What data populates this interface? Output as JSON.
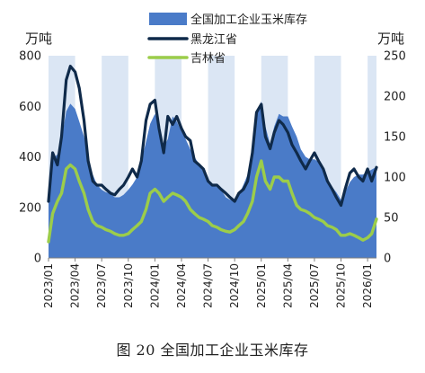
{
  "figure": {
    "caption": "图 20 全国加工企业玉米库存"
  },
  "chart_data": {
    "type": "area+line",
    "left_axis": {
      "unit": "万吨",
      "range": [
        0,
        800
      ],
      "ticks": [
        0,
        200,
        400,
        600,
        800
      ]
    },
    "right_axis": {
      "unit": "万吨",
      "range": [
        0,
        250
      ],
      "ticks": [
        0,
        50,
        100,
        150,
        200,
        250
      ]
    },
    "x_tick_labels": [
      "2023/01",
      "2023/04",
      "2023/07",
      "2023/10",
      "2024/01",
      "2024/04",
      "2024/07",
      "2024/10",
      "2025/01",
      "2025/04",
      "2025/07",
      "2025/10",
      "2026/01"
    ],
    "x_range": [
      "2023/01",
      "2026/02"
    ],
    "grid": "vertical stripes",
    "legend": {
      "position": "top-center"
    },
    "colors": {
      "area": "#4a7bc8",
      "heilongjiang": "#0f2a4a",
      "jilin": "#9ccd4a",
      "stripe": "#dbe6f4"
    },
    "series": [
      {
        "name": "全国加工企业玉米库存",
        "axis": "left",
        "style": "area",
        "points": [
          [
            "2023/01/01",
            250
          ],
          [
            "2023/01/15",
            390
          ],
          [
            "2023/02/01",
            410
          ],
          [
            "2023/02/15",
            470
          ],
          [
            "2023/03/01",
            580
          ],
          [
            "2023/03/15",
            610
          ],
          [
            "2023/04/01",
            590
          ],
          [
            "2023/04/15",
            540
          ],
          [
            "2023/05/01",
            480
          ],
          [
            "2023/05/15",
            400
          ],
          [
            "2023/06/01",
            330
          ],
          [
            "2023/06/15",
            290
          ],
          [
            "2023/07/01",
            270
          ],
          [
            "2023/07/15",
            260
          ],
          [
            "2023/08/01",
            255
          ],
          [
            "2023/08/15",
            240
          ],
          [
            "2023/09/01",
            240
          ],
          [
            "2023/09/15",
            250
          ],
          [
            "2023/10/01",
            270
          ],
          [
            "2023/10/15",
            290
          ],
          [
            "2023/11/01",
            320
          ],
          [
            "2023/11/15",
            380
          ],
          [
            "2023/12/01",
            460
          ],
          [
            "2023/12/15",
            530
          ],
          [
            "2024/01/01",
            570
          ],
          [
            "2024/01/15",
            530
          ],
          [
            "2024/02/01",
            440
          ],
          [
            "2024/02/15",
            470
          ],
          [
            "2024/03/01",
            560
          ],
          [
            "2024/03/15",
            540
          ],
          [
            "2024/04/01",
            500
          ],
          [
            "2024/04/15",
            470
          ],
          [
            "2024/05/01",
            430
          ],
          [
            "2024/05/15",
            400
          ],
          [
            "2024/06/01",
            370
          ],
          [
            "2024/06/15",
            340
          ],
          [
            "2024/07/01",
            300
          ],
          [
            "2024/07/15",
            290
          ],
          [
            "2024/08/01",
            280
          ],
          [
            "2024/08/15",
            270
          ],
          [
            "2024/09/01",
            240
          ],
          [
            "2024/09/15",
            230
          ],
          [
            "2024/10/01",
            230
          ],
          [
            "2024/10/15",
            250
          ],
          [
            "2024/11/01",
            290
          ],
          [
            "2024/11/15",
            330
          ],
          [
            "2024/12/01",
            420
          ],
          [
            "2024/12/15",
            560
          ],
          [
            "2025/01/01",
            620
          ],
          [
            "2025/01/15",
            520
          ],
          [
            "2025/02/01",
            450
          ],
          [
            "2025/02/15",
            520
          ],
          [
            "2025/03/01",
            570
          ],
          [
            "2025/03/15",
            560
          ],
          [
            "2025/04/01",
            560
          ],
          [
            "2025/04/15",
            520
          ],
          [
            "2025/05/01",
            480
          ],
          [
            "2025/05/15",
            430
          ],
          [
            "2025/06/01",
            400
          ],
          [
            "2025/06/15",
            390
          ],
          [
            "2025/07/01",
            390
          ],
          [
            "2025/07/15",
            380
          ],
          [
            "2025/08/01",
            350
          ],
          [
            "2025/08/15",
            310
          ],
          [
            "2025/09/01",
            280
          ],
          [
            "2025/09/15",
            260
          ],
          [
            "2025/10/01",
            230
          ],
          [
            "2025/10/15",
            260
          ],
          [
            "2025/11/01",
            300
          ],
          [
            "2025/11/15",
            320
          ],
          [
            "2025/12/01",
            330
          ],
          [
            "2025/12/15",
            330
          ],
          [
            "2026/01/01",
            340
          ],
          [
            "2026/01/15",
            350
          ],
          [
            "2026/02/01",
            360
          ]
        ]
      },
      {
        "name": "黑龙江省",
        "axis": "right",
        "style": "line",
        "points": [
          [
            "2023/01/01",
            70
          ],
          [
            "2023/01/15",
            130
          ],
          [
            "2023/02/01",
            115
          ],
          [
            "2023/02/15",
            150
          ],
          [
            "2023/03/01",
            220
          ],
          [
            "2023/03/15",
            237
          ],
          [
            "2023/04/01",
            230
          ],
          [
            "2023/04/15",
            210
          ],
          [
            "2023/05/01",
            170
          ],
          [
            "2023/05/15",
            120
          ],
          [
            "2023/06/01",
            95
          ],
          [
            "2023/06/15",
            90
          ],
          [
            "2023/07/01",
            90
          ],
          [
            "2023/07/15",
            85
          ],
          [
            "2023/08/01",
            80
          ],
          [
            "2023/08/15",
            78
          ],
          [
            "2023/09/01",
            85
          ],
          [
            "2023/09/15",
            90
          ],
          [
            "2023/10/01",
            100
          ],
          [
            "2023/10/15",
            110
          ],
          [
            "2023/11/01",
            100
          ],
          [
            "2023/11/15",
            120
          ],
          [
            "2023/12/01",
            170
          ],
          [
            "2023/12/15",
            190
          ],
          [
            "2024/01/01",
            195
          ],
          [
            "2024/01/15",
            160
          ],
          [
            "2024/02/01",
            130
          ],
          [
            "2024/02/15",
            175
          ],
          [
            "2024/03/01",
            165
          ],
          [
            "2024/03/15",
            175
          ],
          [
            "2024/04/01",
            160
          ],
          [
            "2024/04/15",
            150
          ],
          [
            "2024/05/01",
            145
          ],
          [
            "2024/05/15",
            120
          ],
          [
            "2024/06/01",
            115
          ],
          [
            "2024/06/15",
            110
          ],
          [
            "2024/07/01",
            95
          ],
          [
            "2024/07/15",
            90
          ],
          [
            "2024/08/01",
            90
          ],
          [
            "2024/08/15",
            85
          ],
          [
            "2024/09/01",
            80
          ],
          [
            "2024/09/15",
            75
          ],
          [
            "2024/10/01",
            70
          ],
          [
            "2024/10/15",
            80
          ],
          [
            "2024/11/01",
            85
          ],
          [
            "2024/11/15",
            95
          ],
          [
            "2024/12/01",
            130
          ],
          [
            "2024/12/15",
            180
          ],
          [
            "2025/01/01",
            190
          ],
          [
            "2025/01/15",
            150
          ],
          [
            "2025/02/01",
            135
          ],
          [
            "2025/02/15",
            155
          ],
          [
            "2025/03/01",
            170
          ],
          [
            "2025/03/15",
            165
          ],
          [
            "2025/04/01",
            155
          ],
          [
            "2025/04/15",
            140
          ],
          [
            "2025/05/01",
            130
          ],
          [
            "2025/05/15",
            120
          ],
          [
            "2025/06/01",
            110
          ],
          [
            "2025/06/15",
            120
          ],
          [
            "2025/07/01",
            130
          ],
          [
            "2025/07/15",
            120
          ],
          [
            "2025/08/01",
            110
          ],
          [
            "2025/08/15",
            95
          ],
          [
            "2025/09/01",
            85
          ],
          [
            "2025/09/15",
            75
          ],
          [
            "2025/10/01",
            65
          ],
          [
            "2025/10/15",
            85
          ],
          [
            "2025/11/01",
            105
          ],
          [
            "2025/11/15",
            110
          ],
          [
            "2025/12/01",
            100
          ],
          [
            "2025/12/15",
            95
          ],
          [
            "2026/01/01",
            110
          ],
          [
            "2026/01/15",
            95
          ],
          [
            "2026/02/01",
            112
          ]
        ]
      },
      {
        "name": "吉林省",
        "axis": "right",
        "style": "line",
        "points": [
          [
            "2023/01/01",
            20
          ],
          [
            "2023/01/15",
            55
          ],
          [
            "2023/02/01",
            70
          ],
          [
            "2023/02/15",
            80
          ],
          [
            "2023/03/01",
            110
          ],
          [
            "2023/03/15",
            115
          ],
          [
            "2023/04/01",
            110
          ],
          [
            "2023/04/15",
            95
          ],
          [
            "2023/05/01",
            80
          ],
          [
            "2023/05/15",
            60
          ],
          [
            "2023/06/01",
            45
          ],
          [
            "2023/06/15",
            40
          ],
          [
            "2023/07/01",
            38
          ],
          [
            "2023/07/15",
            35
          ],
          [
            "2023/08/01",
            33
          ],
          [
            "2023/08/15",
            30
          ],
          [
            "2023/09/01",
            28
          ],
          [
            "2023/09/15",
            28
          ],
          [
            "2023/10/01",
            30
          ],
          [
            "2023/10/15",
            35
          ],
          [
            "2023/11/01",
            40
          ],
          [
            "2023/11/15",
            45
          ],
          [
            "2023/12/01",
            60
          ],
          [
            "2023/12/15",
            80
          ],
          [
            "2024/01/01",
            85
          ],
          [
            "2024/01/15",
            80
          ],
          [
            "2024/02/01",
            70
          ],
          [
            "2024/02/15",
            75
          ],
          [
            "2024/03/01",
            80
          ],
          [
            "2024/03/15",
            78
          ],
          [
            "2024/04/01",
            75
          ],
          [
            "2024/04/15",
            70
          ],
          [
            "2024/05/01",
            60
          ],
          [
            "2024/05/15",
            55
          ],
          [
            "2024/06/01",
            50
          ],
          [
            "2024/06/15",
            48
          ],
          [
            "2024/07/01",
            45
          ],
          [
            "2024/07/15",
            40
          ],
          [
            "2024/08/01",
            38
          ],
          [
            "2024/08/15",
            35
          ],
          [
            "2024/09/01",
            33
          ],
          [
            "2024/09/15",
            32
          ],
          [
            "2024/10/01",
            35
          ],
          [
            "2024/10/15",
            40
          ],
          [
            "2024/11/01",
            45
          ],
          [
            "2024/11/15",
            55
          ],
          [
            "2024/12/01",
            70
          ],
          [
            "2024/12/15",
            100
          ],
          [
            "2025/01/01",
            120
          ],
          [
            "2025/01/15",
            95
          ],
          [
            "2025/02/01",
            85
          ],
          [
            "2025/02/15",
            100
          ],
          [
            "2025/03/01",
            100
          ],
          [
            "2025/03/15",
            95
          ],
          [
            "2025/04/01",
            95
          ],
          [
            "2025/04/15",
            80
          ],
          [
            "2025/05/01",
            65
          ],
          [
            "2025/05/15",
            60
          ],
          [
            "2025/06/01",
            58
          ],
          [
            "2025/06/15",
            55
          ],
          [
            "2025/07/01",
            50
          ],
          [
            "2025/07/15",
            48
          ],
          [
            "2025/08/01",
            45
          ],
          [
            "2025/08/15",
            40
          ],
          [
            "2025/09/01",
            38
          ],
          [
            "2025/09/15",
            35
          ],
          [
            "2025/10/01",
            28
          ],
          [
            "2025/10/15",
            28
          ],
          [
            "2025/11/01",
            30
          ],
          [
            "2025/11/15",
            28
          ],
          [
            "2025/12/01",
            25
          ],
          [
            "2025/12/15",
            22
          ],
          [
            "2026/01/01",
            25
          ],
          [
            "2026/01/15",
            30
          ],
          [
            "2026/02/01",
            48
          ]
        ]
      }
    ]
  }
}
